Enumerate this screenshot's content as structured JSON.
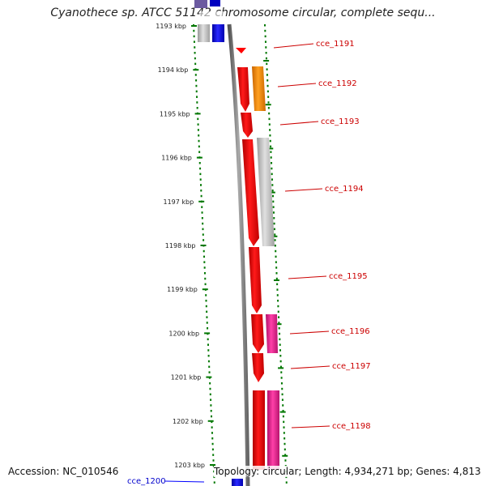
{
  "title": "Cyanothece sp. ATCC 51142 chromosome circular, complete sequ...",
  "axis_ticks": [
    "1193 kbp",
    "1194 kbp",
    "1195 kbp",
    "1196 kbp",
    "1197 kbp",
    "1198 kbp",
    "1199 kbp",
    "1200 kbp",
    "1201 kbp",
    "1202 kbp",
    "1203 kbp"
  ],
  "genes": [
    {
      "label": "cce_1191",
      "color": "#ff0000"
    },
    {
      "label": "cce_1192",
      "color": "#ff8c00"
    },
    {
      "label": "cce_1193",
      "color": "#ff0000"
    },
    {
      "label": "cce_1194",
      "color": "#c0c0c0"
    },
    {
      "label": "cce_1195",
      "color": "#ff0000"
    },
    {
      "label": "cce_1196",
      "color": "#e0208a"
    },
    {
      "label": "cce_1197",
      "color": "#ff0000"
    },
    {
      "label": "cce_1198",
      "color": "#e0208a"
    }
  ],
  "lower_label": {
    "label": "cce_1200",
    "color": "#0000ff"
  },
  "footer": {
    "accession": "Accession: NC_010546",
    "topology": "Topology: circular; Length: 4,934,271 bp; Genes: 4,813"
  },
  "colors": {
    "gene_red": "#ff0000",
    "gene_orange": "#ff8c00",
    "gene_gray": "#c0c0c0",
    "gene_pink": "#e0208a",
    "gene_blue": "#0000ff",
    "backbone": "#808080",
    "tick_green": "#007700",
    "label_red": "#cc0000"
  }
}
